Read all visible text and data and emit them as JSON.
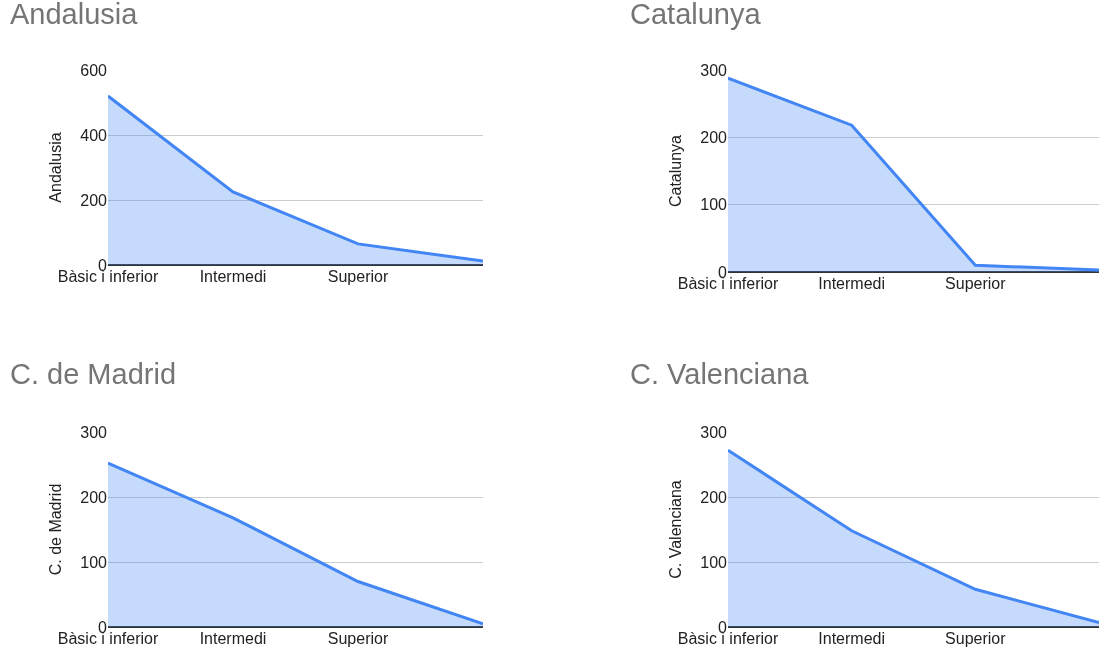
{
  "chart_data": [
    {
      "type": "area",
      "title": "Andalusia",
      "ylabel": "Andalusia",
      "categories": [
        "Bàsic i inferior",
        "Intermedi",
        "Superior",
        null
      ],
      "values": [
        520,
        225,
        65,
        12
      ],
      "color": "#4285f4",
      "ylim": [
        0,
        600
      ],
      "yticks": [
        0,
        200,
        400,
        600
      ],
      "grid": "y"
    },
    {
      "type": "area",
      "title": "Catalunya",
      "ylabel": "Catalunya",
      "categories": [
        "Bàsic i inferior",
        "Intermedi",
        "Superior",
        null
      ],
      "values": [
        288,
        218,
        10,
        3
      ],
      "color": "#4285f4",
      "ylim": [
        0,
        300
      ],
      "yticks": [
        0,
        100,
        200,
        300
      ],
      "grid": "y"
    },
    {
      "type": "area",
      "title": "C. de Madrid",
      "ylabel": "C. de Madrid",
      "categories": [
        "Bàsic i inferior",
        "Intermedi",
        "Superior",
        null
      ],
      "values": [
        252,
        168,
        70,
        5
      ],
      "color": "#4285f4",
      "ylim": [
        0,
        300
      ],
      "yticks": [
        0,
        100,
        200,
        300
      ],
      "grid": "y"
    },
    {
      "type": "area",
      "title": "C. Valenciana",
      "ylabel": "C. Valenciana",
      "categories": [
        "Bàsic i inferior",
        "Intermedi",
        "Superior",
        null
      ],
      "values": [
        272,
        148,
        58,
        7
      ],
      "color": "#4285f4",
      "ylim": [
        0,
        300
      ],
      "yticks": [
        0,
        100,
        200,
        300
      ],
      "grid": "y"
    }
  ]
}
